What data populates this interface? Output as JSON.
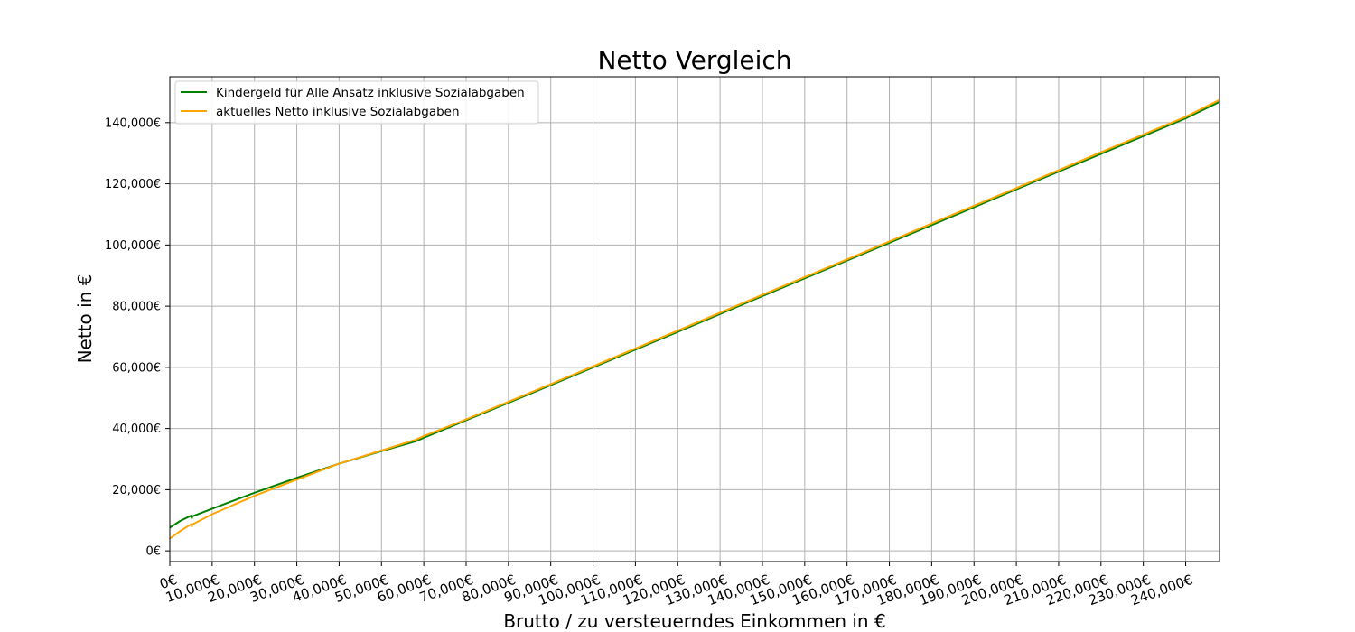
{
  "chart_data": {
    "type": "line",
    "title": "Netto Vergleich",
    "xlabel": "Brutto / zu versteuerndes Einkommen in €",
    "ylabel": "Netto in €",
    "xlim": [
      0,
      248000
    ],
    "ylim": [
      -3500,
      155000
    ],
    "grid": true,
    "legend_position": "top-left",
    "x_ticks": [
      0,
      10000,
      20000,
      30000,
      40000,
      50000,
      60000,
      70000,
      80000,
      90000,
      100000,
      110000,
      120000,
      130000,
      140000,
      150000,
      160000,
      170000,
      180000,
      190000,
      200000,
      210000,
      220000,
      230000,
      240000
    ],
    "x_tick_labels": [
      "0€",
      "10,000€",
      "20,000€",
      "30,000€",
      "40,000€",
      "50,000€",
      "60,000€",
      "70,000€",
      "80,000€",
      "90,000€",
      "100,000€",
      "110,000€",
      "120,000€",
      "130,000€",
      "140,000€",
      "150,000€",
      "160,000€",
      "170,000€",
      "180,000€",
      "190,000€",
      "200,000€",
      "210,000€",
      "220,000€",
      "230,000€",
      "240,000€"
    ],
    "y_ticks": [
      0,
      20000,
      40000,
      60000,
      80000,
      100000,
      120000,
      140000
    ],
    "y_tick_labels": [
      "0€",
      "20,000€",
      "40,000€",
      "60,000€",
      "80,000€",
      "100,000€",
      "120,000€",
      "140,000€"
    ],
    "series": [
      {
        "name": "Kindergeld für Alle Ansatz inklusive Sozialabgaben",
        "color": "#008000",
        "x": [
          0,
          2500,
          5000,
          5200,
          5300,
          10000,
          20000,
          30000,
          40000,
          50000,
          58000,
          60000,
          70000,
          80000,
          100000,
          120000,
          140000,
          160000,
          180000,
          200000,
          220000,
          240000,
          248000
        ],
        "y": [
          7600,
          9800,
          11500,
          10700,
          11300,
          13800,
          19000,
          23900,
          28500,
          32600,
          35800,
          37000,
          42700,
          48400,
          60000,
          71600,
          83300,
          94900,
          106500,
          118200,
          129800,
          141400,
          146800
        ]
      },
      {
        "name": "aktuelles Netto inklusive Sozialabgaben",
        "color": "#FFA500",
        "x": [
          0,
          2500,
          5000,
          5200,
          5300,
          10000,
          20000,
          30000,
          40000,
          50000,
          58000,
          60000,
          70000,
          80000,
          100000,
          120000,
          140000,
          160000,
          180000,
          200000,
          220000,
          240000,
          248000
        ],
        "y": [
          4000,
          6500,
          8700,
          8000,
          8600,
          12000,
          18000,
          23300,
          28500,
          32800,
          36300,
          37500,
          43000,
          48700,
          60300,
          72000,
          83700,
          95300,
          107000,
          118600,
          130300,
          141900,
          147400
        ]
      }
    ]
  }
}
